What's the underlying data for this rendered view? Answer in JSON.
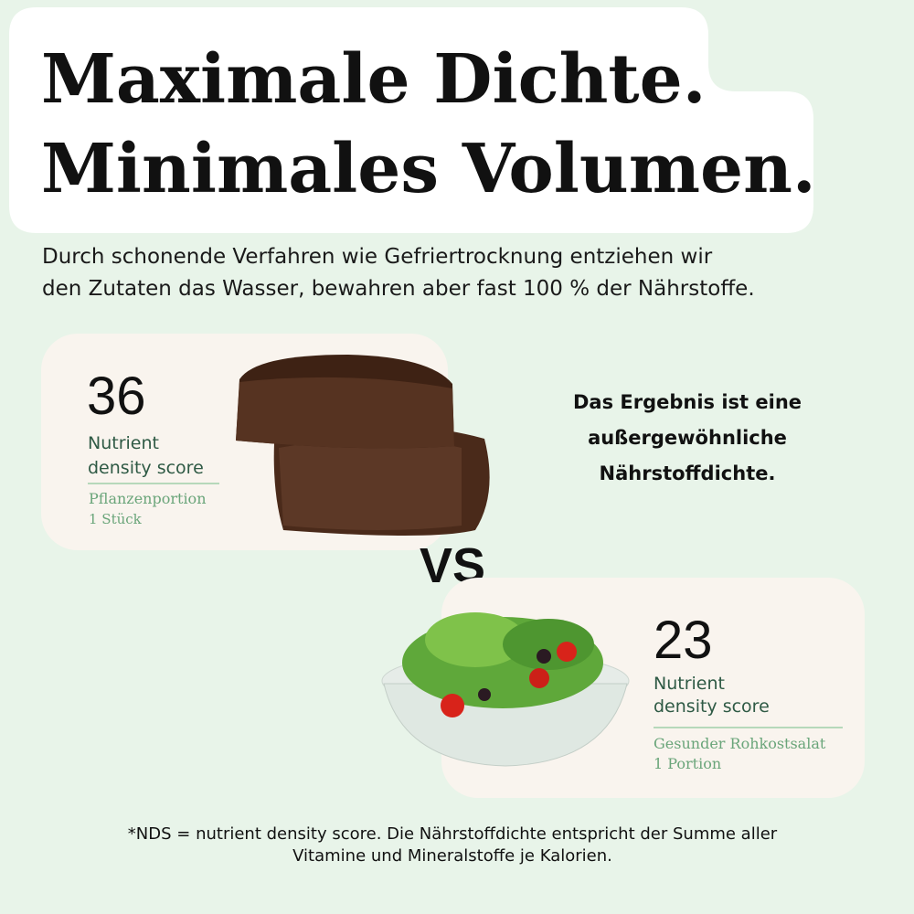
{
  "headline": {
    "lines": [
      "Maximale Dichte.",
      "Minimales Volumen."
    ]
  },
  "intro": {
    "lines": [
      "Durch schonende Verfahren wie Gefriertrocknung entziehen wir",
      "den Zutaten das Wasser, bewahren aber fast 100 % der Nährstoffe."
    ]
  },
  "cards": [
    {
      "score": "36",
      "label_lines": [
        "Nutrient",
        "density score"
      ],
      "product": "Pflanzenportion",
      "quantity": "1 Stück"
    },
    {
      "score": "23",
      "label_lines": [
        "Nutrient",
        "density score"
      ],
      "product": "Gesunder Rohkostsalat",
      "quantity": "1 Portion"
    }
  ],
  "versus": "VS",
  "result": {
    "lines": [
      "Das Ergebnis ist eine",
      "außergewöhnliche",
      "Nährstoffdichte."
    ]
  },
  "footnote": {
    "lines": [
      "*NDS = nutrient density score. Die Nährstoffdichte entspricht der Summe aller",
      "Vitamine und Mineralstoffe je Kalorien."
    ]
  }
}
